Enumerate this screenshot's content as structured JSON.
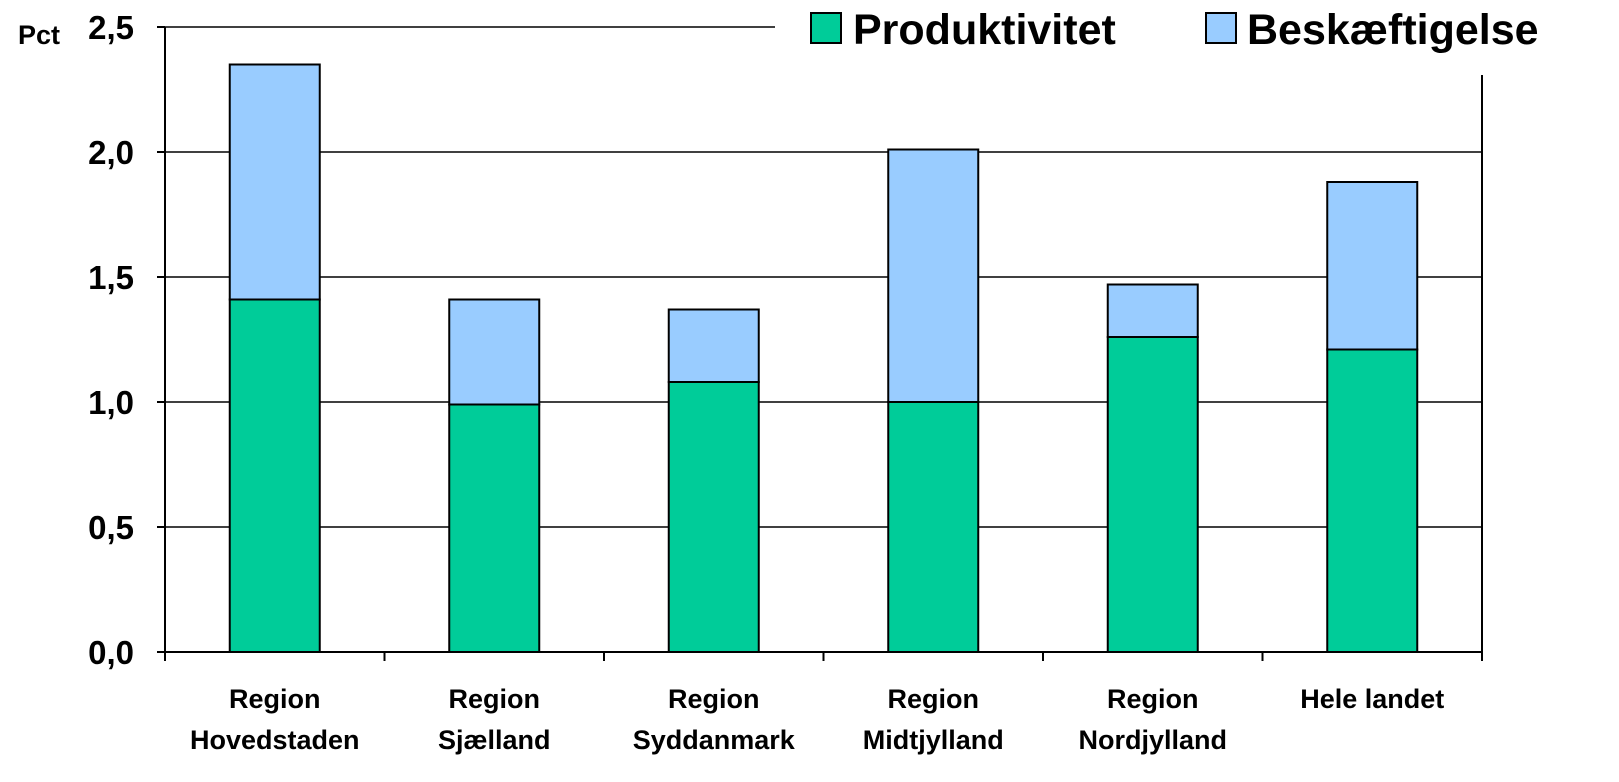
{
  "chart_data": {
    "type": "bar",
    "stacked": true,
    "unit_label": "Pct",
    "categories": [
      [
        "Region",
        "Hovedstaden"
      ],
      [
        "Region",
        "Sjælland"
      ],
      [
        "Region",
        "Syddanmark"
      ],
      [
        "Region",
        "Midtjylland"
      ],
      [
        "Region",
        "Nordjylland"
      ],
      [
        "Hele landet"
      ]
    ],
    "series": [
      {
        "name": "Produktivitet",
        "color": "#00CC99",
        "values": [
          1.41,
          0.99,
          1.08,
          1.0,
          1.26,
          1.21
        ]
      },
      {
        "name": "Beskæftigelse",
        "color": "#99CCFF",
        "values": [
          0.94,
          0.42,
          0.29,
          1.01,
          0.21,
          0.67
        ]
      }
    ],
    "yticks": [
      "0,0",
      "0,5",
      "1,0",
      "1,5",
      "2,0",
      "2,5"
    ],
    "ylim": [
      0,
      2.5
    ],
    "grid": true,
    "legend_position": "top-right"
  }
}
